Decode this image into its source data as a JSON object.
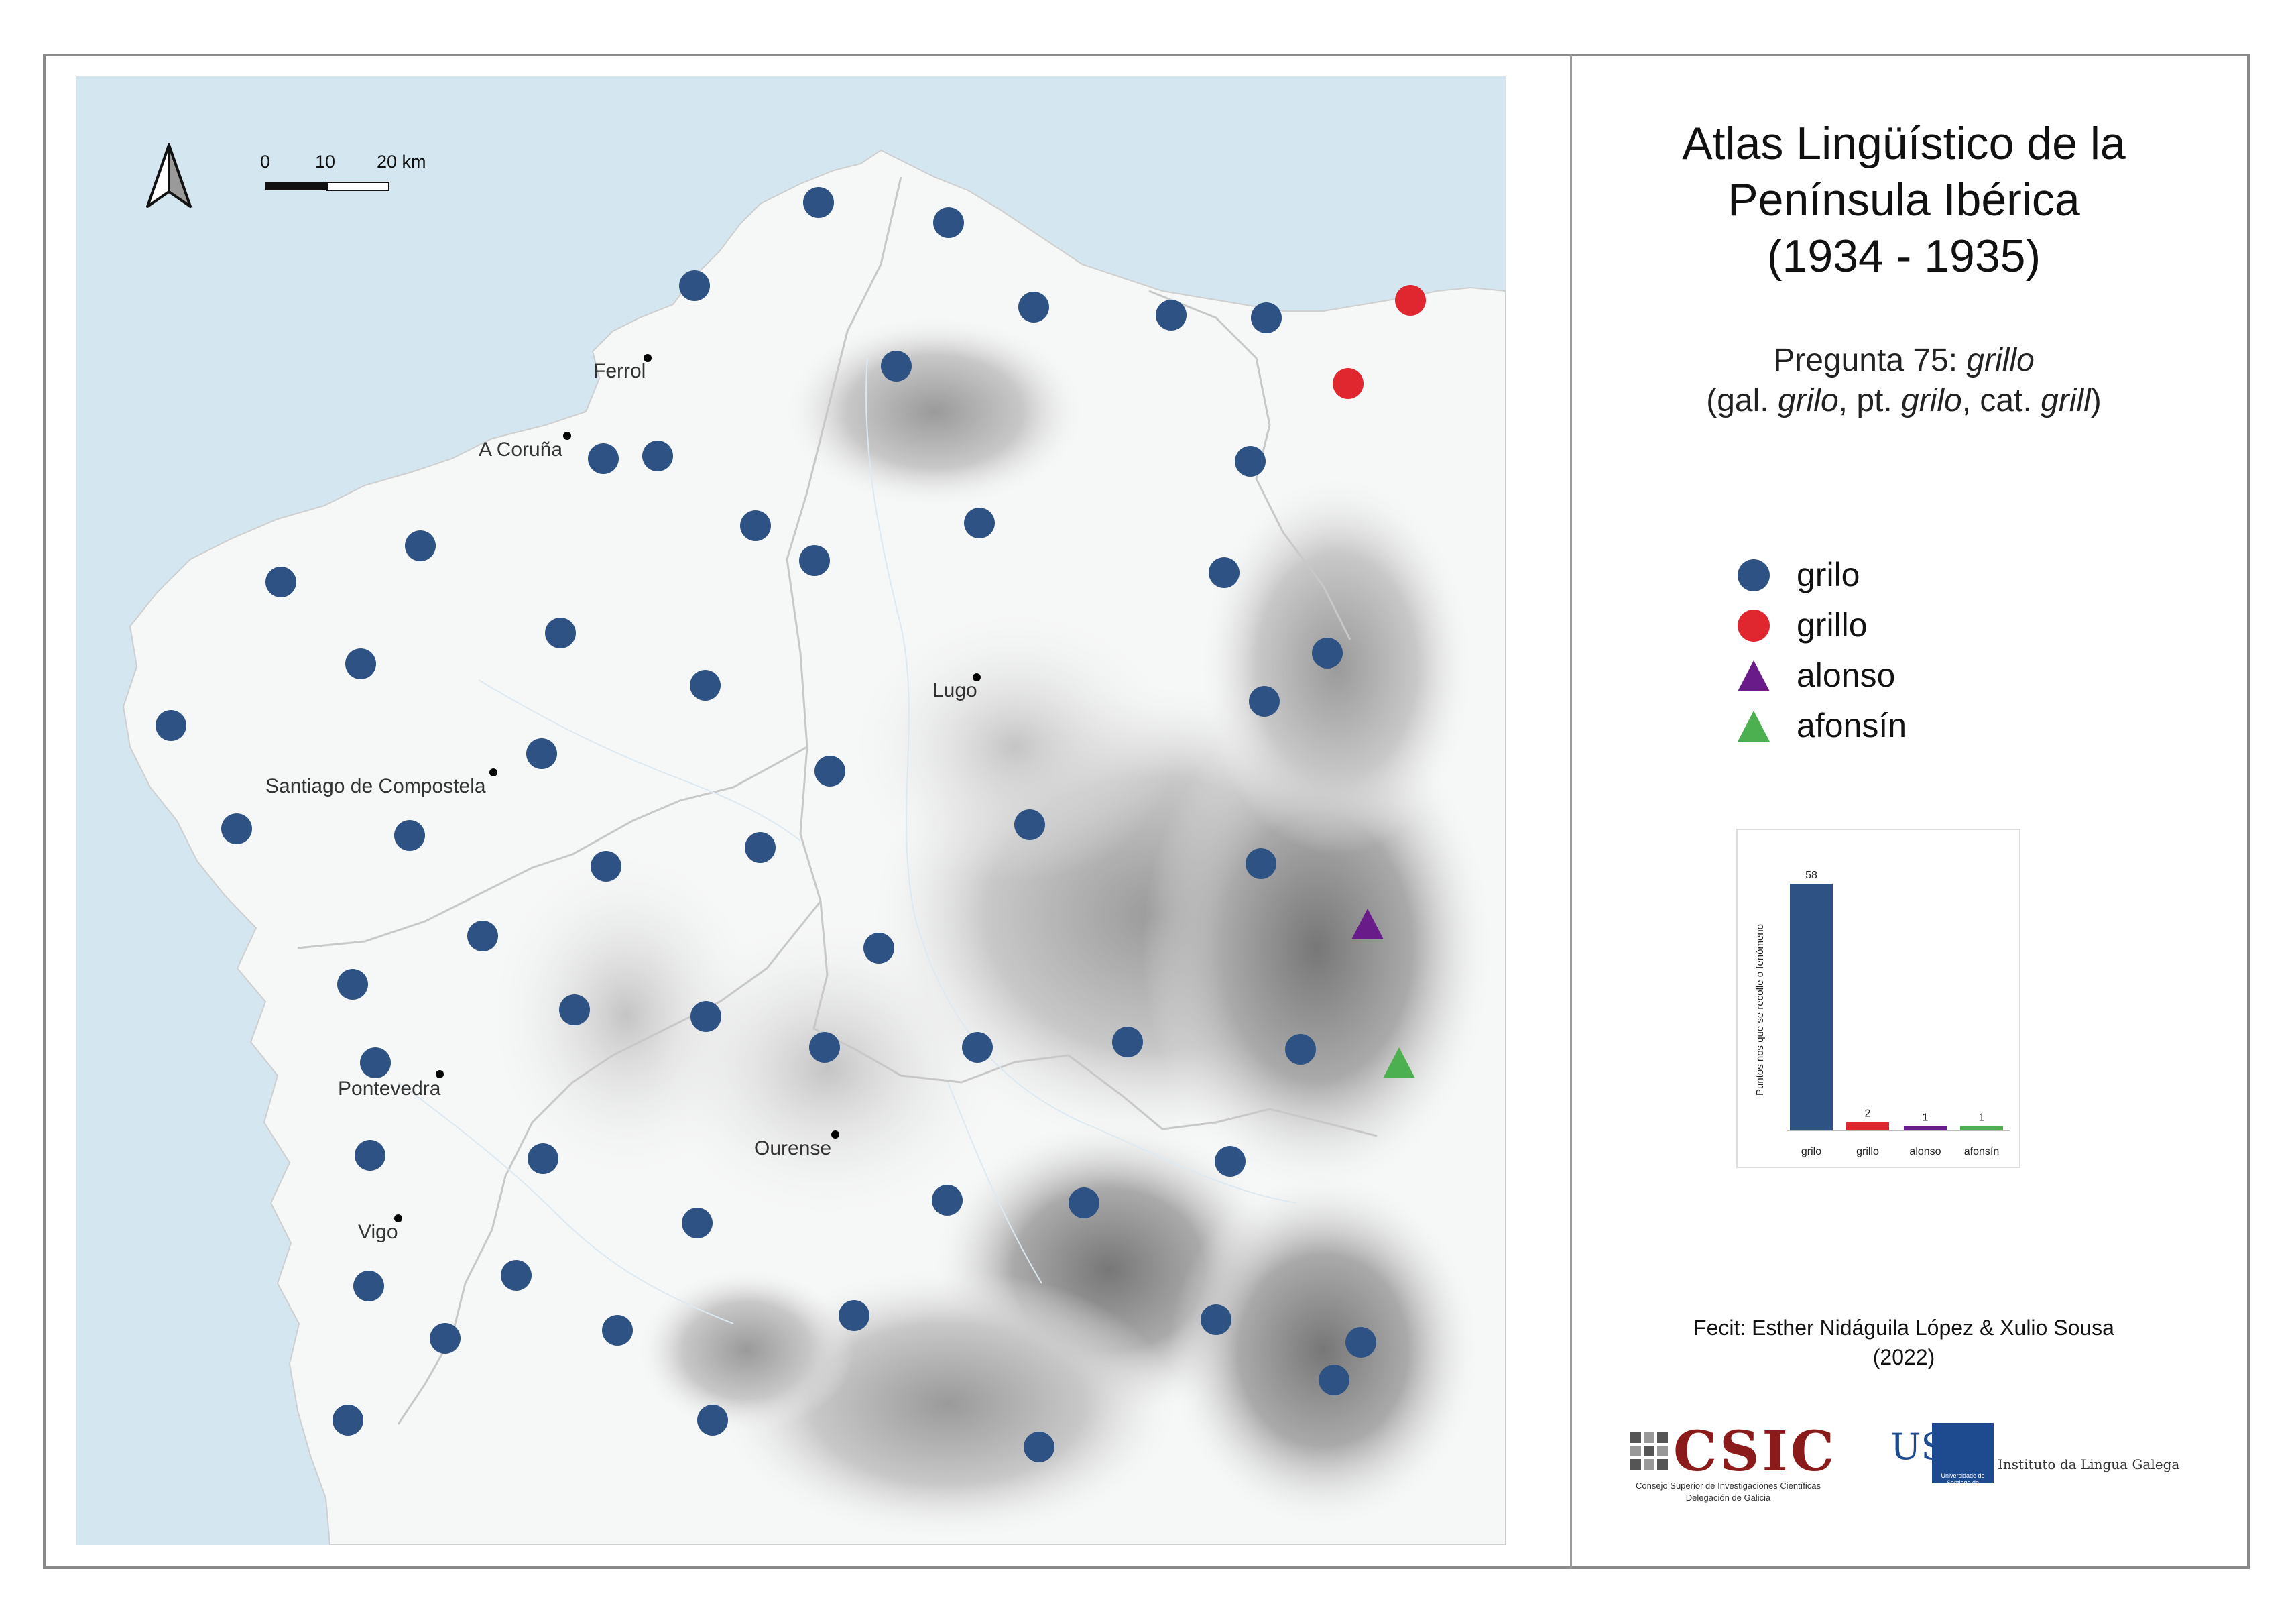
{
  "title": {
    "lines": [
      "Atlas Lingüístico de la",
      "Península Ibérica",
      "(1934 - 1935)"
    ]
  },
  "question": {
    "line1": [
      {
        "t": "Pregunta 75: ",
        "i": false
      },
      {
        "t": "grillo",
        "i": true
      }
    ],
    "line2": [
      {
        "t": "(gal. ",
        "i": false
      },
      {
        "t": "grilo",
        "i": true
      },
      {
        "t": ", pt. ",
        "i": false
      },
      {
        "t": "grilo",
        "i": true
      },
      {
        "t": ", cat. ",
        "i": false
      },
      {
        "t": "grill",
        "i": true
      },
      {
        "t": ")",
        "i": false
      }
    ]
  },
  "legend": [
    {
      "label": "grilo",
      "shape": "circle",
      "color": "#2e5283"
    },
    {
      "label": "grillo",
      "shape": "circle",
      "color": "#e0262f"
    },
    {
      "label": "alonso",
      "shape": "triangle",
      "color": "#6a1b8a"
    },
    {
      "label": "afonsín",
      "shape": "triangle",
      "color": "#4caf50"
    }
  ],
  "scale_bar": {
    "labels": [
      "0",
      "10",
      "20 km"
    ]
  },
  "north_arrow_icon": "north-arrow-icon",
  "cities": [
    {
      "name": "Ferrol"
    },
    {
      "name": "A Coruña"
    },
    {
      "name": "Santiago de Compostela"
    },
    {
      "name": "Lugo"
    },
    {
      "name": "Pontevedra"
    },
    {
      "name": "Ourense"
    },
    {
      "name": "Vigo"
    }
  ],
  "chart_data": {
    "type": "bar",
    "categories": [
      "grilo",
      "grillo",
      "alonso",
      "afonsín"
    ],
    "values": [
      58,
      2,
      1,
      1
    ],
    "colors": [
      "#2e5283",
      "#e0262f",
      "#6a1b8a",
      "#4caf50"
    ],
    "ylabel": "Puntos nos que se recolle o fenómeno",
    "title": "",
    "xlabel": ""
  },
  "credit": {
    "line1": "Fecit: Esther Nidáguila López & Xulio Sousa",
    "line2": "(2022)"
  },
  "logos": {
    "csic": "CSIC",
    "csic_sub1": "Consejo Superior de Investigaciones Científicas",
    "csic_sub2": "Delegación de Galicia",
    "usc": "USC",
    "usc_sub": "Universidade de Santiago de Compostela",
    "ilg": "Instituto da Lingua Galega"
  },
  "colors": {
    "sea": "#d4e6f0",
    "land": "#f7f8f8",
    "frame": "#8a8a8a"
  }
}
